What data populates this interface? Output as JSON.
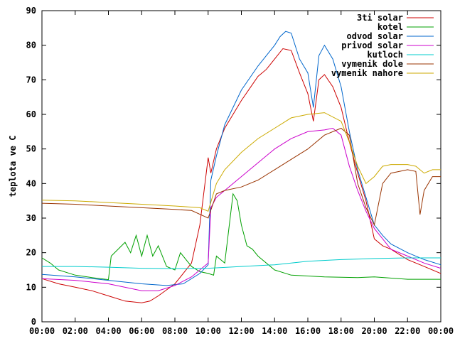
{
  "chart_data": {
    "type": "line",
    "title": "",
    "xlabel": "",
    "ylabel": "teplota ve C",
    "xlim": [
      "00:00",
      "24:00"
    ],
    "ylim": [
      0,
      90
    ],
    "x_ticks": [
      "00:00",
      "02:00",
      "04:00",
      "06:00",
      "08:00",
      "10:00",
      "12:00",
      "14:00",
      "16:00",
      "18:00",
      "20:00",
      "22:00",
      "00:00"
    ],
    "y_ticks": [
      "0",
      "10",
      "20",
      "30",
      "40",
      "50",
      "60",
      "70",
      "80",
      "90"
    ],
    "grid": false,
    "legend_position": "top-right",
    "series": [
      {
        "name": "3ti solar",
        "color": "#cc0000",
        "points": [
          [
            "00:00",
            12.5
          ],
          [
            "01:00",
            11
          ],
          [
            "02:00",
            10
          ],
          [
            "03:00",
            9
          ],
          [
            "04:00",
            7.5
          ],
          [
            "05:00",
            6
          ],
          [
            "06:00",
            5.5
          ],
          [
            "06:30",
            6
          ],
          [
            "07:00",
            7.5
          ],
          [
            "08:00",
            11
          ],
          [
            "09:00",
            17
          ],
          [
            "09:30",
            28
          ],
          [
            "10:00",
            47.5
          ],
          [
            "10:10",
            43
          ],
          [
            "10:30",
            50
          ],
          [
            "11:00",
            56
          ],
          [
            "12:00",
            64
          ],
          [
            "13:00",
            71
          ],
          [
            "13:30",
            73
          ],
          [
            "14:00",
            76
          ],
          [
            "14:30",
            79
          ],
          [
            "15:00",
            78.5
          ],
          [
            "15:30",
            72
          ],
          [
            "16:00",
            66
          ],
          [
            "16:20",
            58
          ],
          [
            "16:40",
            70
          ],
          [
            "17:00",
            71.5
          ],
          [
            "17:30",
            68
          ],
          [
            "18:00",
            62
          ],
          [
            "18:30",
            52
          ],
          [
            "19:00",
            43
          ],
          [
            "19:30",
            35
          ],
          [
            "20:00",
            24
          ],
          [
            "20:30",
            22
          ],
          [
            "21:00",
            21
          ],
          [
            "22:00",
            18
          ],
          [
            "23:00",
            16
          ],
          [
            "24:00",
            14
          ]
        ]
      },
      {
        "name": "kotel",
        "color": "#00a000",
        "points": [
          [
            "00:00",
            18.5
          ],
          [
            "00:30",
            17
          ],
          [
            "01:00",
            15
          ],
          [
            "02:00",
            13.5
          ],
          [
            "03:00",
            12.8
          ],
          [
            "04:00",
            12.2
          ],
          [
            "04:10",
            19
          ],
          [
            "05:00",
            23
          ],
          [
            "05:20",
            20
          ],
          [
            "05:40",
            25
          ],
          [
            "06:00",
            19
          ],
          [
            "06:20",
            25
          ],
          [
            "06:40",
            19
          ],
          [
            "07:00",
            22
          ],
          [
            "07:30",
            16
          ],
          [
            "08:00",
            15
          ],
          [
            "08:20",
            20
          ],
          [
            "09:00",
            16
          ],
          [
            "09:30",
            14.5
          ],
          [
            "10:00",
            14
          ],
          [
            "10:20",
            13.5
          ],
          [
            "10:30",
            19
          ],
          [
            "11:00",
            17
          ],
          [
            "11:30",
            37
          ],
          [
            "11:45",
            35
          ],
          [
            "12:00",
            28
          ],
          [
            "12:20",
            22
          ],
          [
            "12:40",
            21
          ],
          [
            "13:00",
            19
          ],
          [
            "14:00",
            15
          ],
          [
            "15:00",
            13.5
          ],
          [
            "17:00",
            13
          ],
          [
            "19:00",
            12.8
          ],
          [
            "20:00",
            13
          ],
          [
            "22:00",
            12.3
          ],
          [
            "24:00",
            12.3
          ]
        ]
      },
      {
        "name": "odvod solar",
        "color": "#0066cc",
        "points": [
          [
            "00:00",
            13.7
          ],
          [
            "02:00",
            13
          ],
          [
            "04:00",
            12
          ],
          [
            "06:00",
            11
          ],
          [
            "07:30",
            10.5
          ],
          [
            "08:30",
            11
          ],
          [
            "09:30",
            14
          ],
          [
            "10:00",
            16.5
          ],
          [
            "10:10",
            41
          ],
          [
            "10:30",
            48
          ],
          [
            "11:00",
            57
          ],
          [
            "12:00",
            67
          ],
          [
            "13:00",
            74
          ],
          [
            "13:30",
            77
          ],
          [
            "14:00",
            80
          ],
          [
            "14:20",
            82.5
          ],
          [
            "14:40",
            84
          ],
          [
            "15:00",
            83.5
          ],
          [
            "15:30",
            76
          ],
          [
            "16:00",
            72
          ],
          [
            "16:20",
            62
          ],
          [
            "16:40",
            77
          ],
          [
            "17:00",
            80
          ],
          [
            "17:30",
            76
          ],
          [
            "18:00",
            68
          ],
          [
            "18:30",
            55
          ],
          [
            "19:00",
            44
          ],
          [
            "19:30",
            36
          ],
          [
            "20:00",
            28
          ],
          [
            "20:30",
            25
          ],
          [
            "21:00",
            22.5
          ],
          [
            "22:00",
            20
          ],
          [
            "23:00",
            18
          ],
          [
            "24:00",
            16.5
          ]
        ]
      },
      {
        "name": "privod solar",
        "color": "#cc00cc",
        "points": [
          [
            "00:00",
            12.5
          ],
          [
            "02:00",
            12
          ],
          [
            "04:00",
            11
          ],
          [
            "06:00",
            9
          ],
          [
            "07:00",
            9
          ],
          [
            "08:00",
            10.5
          ],
          [
            "09:00",
            13
          ],
          [
            "10:00",
            17
          ],
          [
            "10:10",
            33
          ],
          [
            "10:30",
            36
          ],
          [
            "11:00",
            38
          ],
          [
            "12:00",
            42
          ],
          [
            "13:00",
            46
          ],
          [
            "14:00",
            50
          ],
          [
            "15:00",
            53
          ],
          [
            "16:00",
            55
          ],
          [
            "17:00",
            55.5
          ],
          [
            "17:30",
            56
          ],
          [
            "18:00",
            54
          ],
          [
            "18:30",
            45
          ],
          [
            "19:00",
            38
          ],
          [
            "19:30",
            32
          ],
          [
            "20:00",
            27
          ],
          [
            "20:30",
            24
          ],
          [
            "21:00",
            21
          ],
          [
            "22:00",
            19
          ],
          [
            "23:00",
            17
          ],
          [
            "24:00",
            15.5
          ]
        ]
      },
      {
        "name": "kutloch",
        "color": "#00cccc",
        "points": [
          [
            "00:00",
            16
          ],
          [
            "02:00",
            16
          ],
          [
            "04:00",
            15.8
          ],
          [
            "06:00",
            15.5
          ],
          [
            "08:00",
            15.4
          ],
          [
            "10:00",
            15.5
          ],
          [
            "12:00",
            16
          ],
          [
            "14:00",
            16.5
          ],
          [
            "16:00",
            17.5
          ],
          [
            "18:00",
            18
          ],
          [
            "20:00",
            18.3
          ],
          [
            "22:00",
            18.5
          ],
          [
            "24:00",
            18.5
          ]
        ]
      },
      {
        "name": "vymenik dole",
        "color": "#993300",
        "points": [
          [
            "00:00",
            34.3
          ],
          [
            "02:00",
            34
          ],
          [
            "04:00",
            33.5
          ],
          [
            "06:00",
            33
          ],
          [
            "08:00",
            32.5
          ],
          [
            "09:00",
            32.2
          ],
          [
            "10:00",
            30
          ],
          [
            "10:30",
            37
          ],
          [
            "11:00",
            38
          ],
          [
            "12:00",
            39
          ],
          [
            "13:00",
            41
          ],
          [
            "14:00",
            44
          ],
          [
            "15:00",
            47
          ],
          [
            "16:00",
            50
          ],
          [
            "17:00",
            54
          ],
          [
            "18:00",
            56
          ],
          [
            "18:30",
            54
          ],
          [
            "19:00",
            40
          ],
          [
            "19:30",
            33
          ],
          [
            "20:00",
            28
          ],
          [
            "20:30",
            40
          ],
          [
            "21:00",
            43
          ],
          [
            "22:00",
            44
          ],
          [
            "22:30",
            43.5
          ],
          [
            "22:45",
            31
          ],
          [
            "23:00",
            38
          ],
          [
            "23:30",
            42
          ],
          [
            "24:00",
            42
          ]
        ]
      },
      {
        "name": "vymenik nahore",
        "color": "#ccaa00",
        "points": [
          [
            "00:00",
            35.2
          ],
          [
            "02:00",
            35
          ],
          [
            "04:00",
            34.5
          ],
          [
            "06:00",
            34
          ],
          [
            "08:00",
            33.5
          ],
          [
            "09:30",
            33
          ],
          [
            "10:00",
            32
          ],
          [
            "10:30",
            40
          ],
          [
            "11:00",
            44
          ],
          [
            "12:00",
            49
          ],
          [
            "13:00",
            53
          ],
          [
            "14:00",
            56
          ],
          [
            "15:00",
            59
          ],
          [
            "16:00",
            60
          ],
          [
            "17:00",
            60.5
          ],
          [
            "18:00",
            58
          ],
          [
            "18:30",
            52
          ],
          [
            "19:00",
            45
          ],
          [
            "19:30",
            40
          ],
          [
            "20:00",
            42
          ],
          [
            "20:30",
            45
          ],
          [
            "21:00",
            45.5
          ],
          [
            "22:00",
            45.5
          ],
          [
            "22:30",
            45
          ],
          [
            "23:00",
            43
          ],
          [
            "23:30",
            44
          ],
          [
            "24:00",
            44
          ]
        ]
      }
    ]
  }
}
